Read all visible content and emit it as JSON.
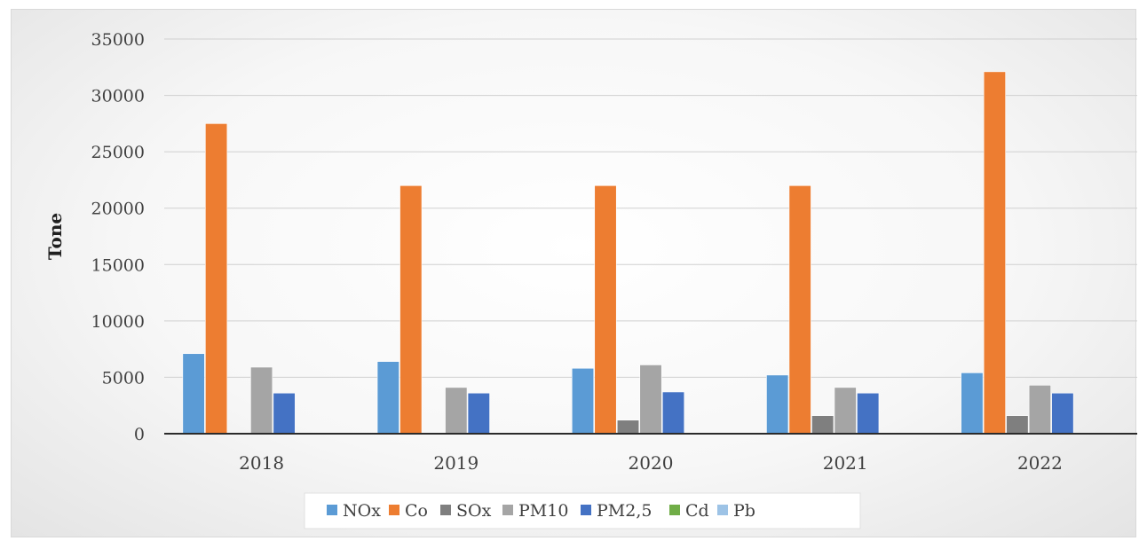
{
  "chart_data": {
    "type": "bar",
    "title": "",
    "xlabel": "",
    "ylabel": "Tone",
    "ylim": [
      0,
      35000
    ],
    "yticks": [
      0,
      5000,
      10000,
      15000,
      20000,
      25000,
      30000,
      35000
    ],
    "grid": true,
    "legend_position": "bottom",
    "categories": [
      "2018",
      "2019",
      "2020",
      "2021",
      "2022"
    ],
    "series": [
      {
        "name": "NOx",
        "color": "#5b9bd5",
        "values": [
          7100,
          6400,
          5800,
          5200,
          5400
        ]
      },
      {
        "name": "Co",
        "color": "#ed7d31",
        "values": [
          27500,
          22000,
          22000,
          22000,
          32100
        ]
      },
      {
        "name": "SOx",
        "color": "#7f7f7f",
        "values": [
          0,
          0,
          1200,
          1600,
          1600
        ]
      },
      {
        "name": "PM10",
        "color": "#a5a5a5",
        "values": [
          5900,
          4100,
          6100,
          4100,
          4300
        ]
      },
      {
        "name": "PM2,5",
        "color": "#4472c4",
        "values": [
          3600,
          3600,
          3700,
          3600,
          3600
        ]
      },
      {
        "name": "Cd",
        "color": "#70ad47",
        "values": [
          0,
          0,
          0,
          0,
          0
        ]
      },
      {
        "name": "Pb",
        "color": "#9dc3e6",
        "values": [
          0,
          0,
          0,
          0,
          0
        ]
      }
    ]
  }
}
